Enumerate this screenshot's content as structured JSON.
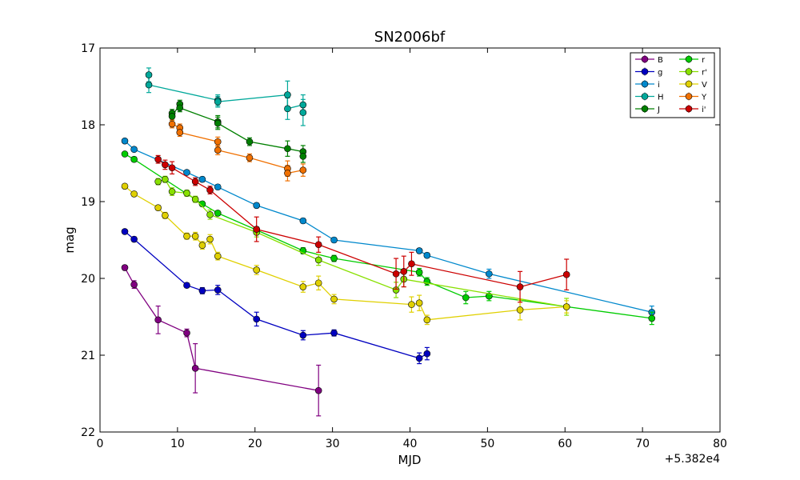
{
  "chart_data": {
    "type": "scatter",
    "title": "SN2006bf",
    "xlabel": "MJD",
    "ylabel": "mag",
    "offset_label": "+5.382e4",
    "xlim": [
      0,
      80
    ],
    "ylim": [
      22,
      17
    ],
    "y_inverted": true,
    "grid": false,
    "legend_position": "top-right",
    "xticks": [
      "0",
      "10",
      "20",
      "30",
      "40",
      "50",
      "60",
      "70",
      "80"
    ],
    "yticks": [
      "17",
      "18",
      "19",
      "20",
      "21",
      "22"
    ],
    "series": [
      {
        "name": "B",
        "color": "#800080",
        "x": [
          3.2,
          4.4,
          7.5,
          11.2,
          12.3,
          28.2
        ],
        "y": [
          19.86,
          20.08,
          20.54,
          20.71,
          21.17,
          21.46
        ],
        "err": [
          0.03,
          0.05,
          0.18,
          0.05,
          0.32,
          0.33
        ]
      },
      {
        "name": "g",
        "color": "#0000c0",
        "x": [
          3.2,
          4.4,
          11.2,
          13.2,
          15.2,
          20.2,
          26.2,
          30.2,
          41.2,
          42.2
        ],
        "y": [
          19.39,
          19.49,
          20.09,
          20.16,
          20.15,
          20.53,
          20.74,
          20.71,
          21.04,
          20.98
        ],
        "err": [
          0.02,
          0.03,
          0.03,
          0.04,
          0.06,
          0.09,
          0.06,
          0.04,
          0.07,
          0.08
        ]
      },
      {
        "name": "i",
        "color": "#0088cc",
        "x": [
          3.2,
          4.4,
          11.2,
          13.2,
          15.2,
          20.2,
          26.2,
          30.2,
          41.2,
          42.2,
          50.2,
          71.2
        ],
        "y": [
          18.21,
          18.32,
          18.62,
          18.71,
          18.81,
          19.05,
          19.25,
          19.5,
          19.64,
          19.7,
          19.94,
          20.44
        ],
        "err": [
          0.02,
          0.02,
          0.02,
          0.03,
          0.03,
          0.03,
          0.03,
          0.03,
          0.03,
          0.03,
          0.06,
          0.08
        ]
      },
      {
        "name": "H",
        "color": "#00a89a",
        "x": [
          6.3,
          6.3,
          15.2,
          15.2,
          24.2,
          24.2,
          26.2,
          26.2
        ],
        "y": [
          17.35,
          17.48,
          17.68,
          17.7,
          17.61,
          17.79,
          17.74,
          17.84
        ],
        "err": [
          0.09,
          0.1,
          0.07,
          0.07,
          0.18,
          0.14,
          0.13,
          0.17
        ]
      },
      {
        "name": "J",
        "color": "#008000",
        "x": [
          9.3,
          9.3,
          10.3,
          10.3,
          15.2,
          15.2,
          19.3,
          24.2,
          26.2,
          26.2
        ],
        "y": [
          17.85,
          17.89,
          17.73,
          17.78,
          17.96,
          17.98,
          18.22,
          18.31,
          18.35,
          18.41
        ],
        "err": [
          0.05,
          0.05,
          0.05,
          0.05,
          0.08,
          0.08,
          0.05,
          0.1,
          0.08,
          0.08
        ]
      },
      {
        "name": "r",
        "color": "#00cc00",
        "x": [
          3.2,
          4.4,
          13.2,
          15.2,
          20.2,
          26.2,
          30.2,
          41.2,
          42.2,
          47.2,
          50.2,
          71.2
        ],
        "y": [
          18.38,
          18.45,
          19.03,
          19.15,
          19.37,
          19.64,
          19.74,
          19.92,
          20.04,
          20.25,
          20.23,
          20.52
        ],
        "err": [
          0.02,
          0.03,
          0.03,
          0.03,
          0.04,
          0.04,
          0.04,
          0.05,
          0.05,
          0.08,
          0.06,
          0.08
        ]
      },
      {
        "name": "r'",
        "color": "#88e000",
        "x": [
          7.5,
          8.4,
          9.3,
          11.2,
          12.3,
          14.2,
          20.2,
          28.2,
          38.2,
          39.2,
          60.2
        ],
        "y": [
          18.74,
          18.71,
          18.87,
          18.89,
          18.97,
          19.17,
          19.4,
          19.76,
          20.15,
          20.01,
          20.37
        ],
        "err": [
          0.04,
          0.04,
          0.05,
          0.04,
          0.04,
          0.06,
          0.06,
          0.07,
          0.1,
          0.1,
          0.11
        ]
      },
      {
        "name": "V",
        "color": "#e0d000",
        "x": [
          3.2,
          4.4,
          7.5,
          8.4,
          11.2,
          12.3,
          13.2,
          14.2,
          15.2,
          20.2,
          26.2,
          28.2,
          30.2,
          40.2,
          41.2,
          42.2,
          54.2,
          60.2
        ],
        "y": [
          18.8,
          18.9,
          19.08,
          19.18,
          19.45,
          19.45,
          19.57,
          19.49,
          19.71,
          19.89,
          20.11,
          20.06,
          20.27,
          20.34,
          20.32,
          20.54,
          20.41,
          20.37
        ],
        "err": [
          0.02,
          0.03,
          0.03,
          0.04,
          0.04,
          0.05,
          0.05,
          0.06,
          0.05,
          0.06,
          0.07,
          0.09,
          0.06,
          0.1,
          0.1,
          0.06,
          0.13,
          0.08
        ]
      },
      {
        "name": "Y",
        "color": "#f07000",
        "x": [
          9.3,
          10.3,
          10.3,
          15.2,
          15.2,
          19.3,
          24.2,
          24.2,
          26.2
        ],
        "y": [
          17.99,
          18.04,
          18.1,
          18.22,
          18.33,
          18.43,
          18.57,
          18.63,
          18.59
        ],
        "err": [
          0.05,
          0.05,
          0.05,
          0.06,
          0.06,
          0.05,
          0.1,
          0.1,
          0.08
        ]
      },
      {
        "name": "i'",
        "color": "#cc0000",
        "x": [
          7.5,
          8.4,
          9.3,
          12.3,
          14.2,
          20.2,
          28.2,
          38.2,
          39.2,
          40.2,
          54.2,
          60.2
        ],
        "y": [
          18.45,
          18.52,
          18.56,
          18.74,
          18.85,
          19.36,
          19.56,
          19.94,
          19.91,
          19.81,
          20.11,
          19.95
        ],
        "err": [
          0.05,
          0.06,
          0.08,
          0.05,
          0.05,
          0.16,
          0.1,
          0.2,
          0.2,
          0.15,
          0.2,
          0.2
        ]
      }
    ]
  }
}
